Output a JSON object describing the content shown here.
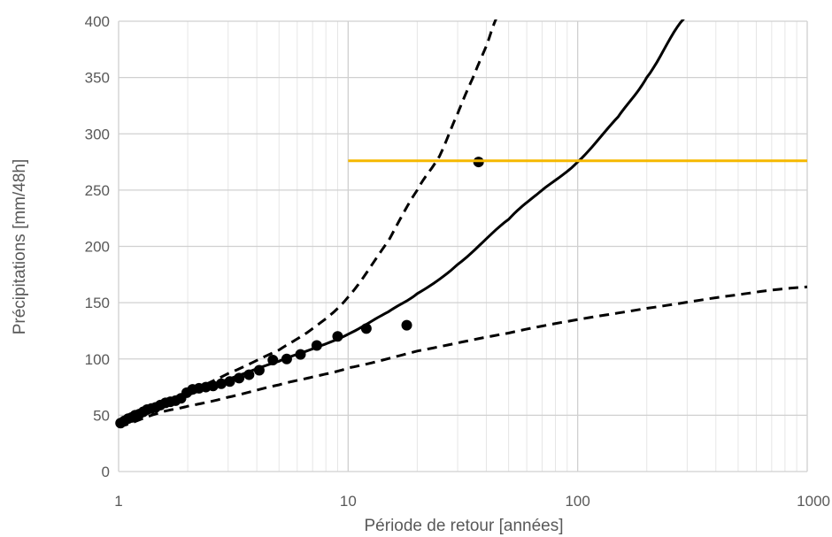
{
  "chart_data": {
    "type": "scatter",
    "title": "",
    "xlabel": "Période de retour [années]",
    "ylabel": "Précipitations [mm/48h]",
    "x_scale": "log",
    "xlim": [
      1,
      1000
    ],
    "ylim": [
      0,
      400
    ],
    "x_ticks": [
      "1",
      "10",
      "100",
      "1000"
    ],
    "y_ticks": [
      "0",
      "50",
      "100",
      "150",
      "200",
      "250",
      "300",
      "350",
      "400"
    ],
    "grid": true,
    "colors": {
      "points": "#000000",
      "fit": "#000000",
      "bounds": "#000000",
      "threshold": "#f5b800",
      "axis_text": "#595959"
    },
    "series": [
      {
        "style": "points",
        "x": [
          1.02,
          1.06,
          1.1,
          1.14,
          1.18,
          1.23,
          1.28,
          1.33,
          1.39,
          1.45,
          1.52,
          1.6,
          1.68,
          1.77,
          1.87,
          1.98,
          2.1,
          2.24,
          2.4,
          2.58,
          2.8,
          3.05,
          3.35,
          3.7,
          4.1,
          4.7,
          5.4,
          6.2,
          7.3,
          9.0,
          12.0,
          18.0,
          37.0
        ],
        "y": [
          43,
          45,
          47,
          48,
          50,
          51,
          53,
          55,
          56,
          57,
          59,
          61,
          62,
          63,
          65,
          70,
          73,
          74,
          75,
          76,
          78,
          80,
          83,
          86,
          90,
          99,
          100,
          104,
          112,
          120,
          127,
          130,
          275
        ]
      },
      {
        "style": "solid-line",
        "x": [
          1,
          1.5,
          2,
          3,
          5,
          7,
          10,
          15,
          20,
          30,
          50,
          70,
          100,
          150,
          200,
          300
        ],
        "y": [
          42,
          58,
          68,
          82,
          98,
          109,
          122,
          142,
          158,
          184,
          224,
          250,
          275,
          315,
          350,
          405
        ]
      },
      {
        "style": "dashed-line",
        "x": [
          1,
          1.5,
          2,
          3,
          5,
          7,
          10,
          15,
          20,
          25,
          30,
          35,
          40,
          45
        ],
        "y": [
          43,
          60,
          71,
          87,
          108,
          127,
          155,
          205,
          250,
          280,
          318,
          350,
          378,
          405
        ]
      },
      {
        "style": "dashed-line",
        "x": [
          1,
          1.5,
          2,
          3,
          5,
          7,
          10,
          20,
          50,
          100,
          200,
          500,
          1000
        ],
        "y": [
          40,
          52,
          58,
          66,
          77,
          84,
          92,
          107,
          123,
          135,
          145,
          157,
          164
        ]
      },
      {
        "style": "threshold-line",
        "x": [
          10,
          1000
        ],
        "y": [
          276,
          276
        ]
      }
    ]
  }
}
